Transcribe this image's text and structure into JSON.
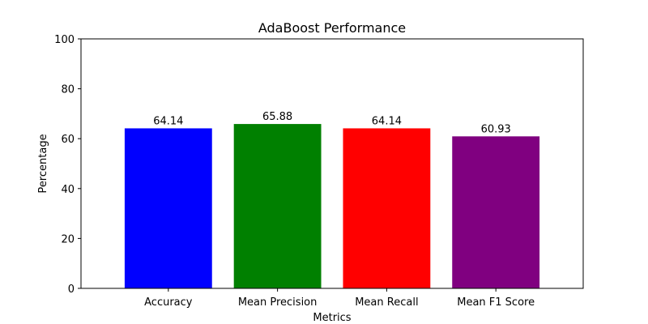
{
  "chart_data": {
    "type": "bar",
    "title": "AdaBoost Performance",
    "xlabel": "Metrics",
    "ylabel": "Percentage",
    "categories": [
      "Accuracy",
      "Mean Precision",
      "Mean Recall",
      "Mean F1 Score"
    ],
    "values": [
      64.14,
      65.88,
      64.14,
      60.93
    ],
    "value_labels": [
      "64.14",
      "65.88",
      "64.14",
      "60.93"
    ],
    "colors": [
      "#0000ff",
      "#008000",
      "#ff0000",
      "#800080"
    ],
    "ylim": [
      0,
      100
    ],
    "yticks": [
      0,
      20,
      40,
      60,
      80,
      100
    ],
    "ytick_labels": [
      "0",
      "20",
      "40",
      "60",
      "80",
      "100"
    ],
    "grid": false,
    "legend": false
  }
}
